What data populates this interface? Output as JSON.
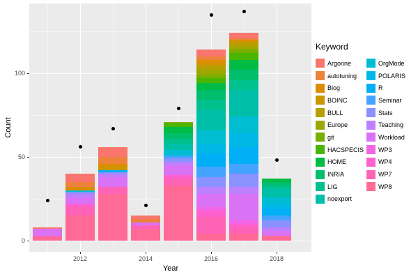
{
  "chart_data": {
    "type": "bar",
    "stacked": true,
    "xlabel": "Year",
    "ylabel": "Count",
    "legend_title": "Keyword",
    "x": [
      2011,
      2012,
      2013,
      2014,
      2015,
      2016,
      2017,
      2018
    ],
    "x_tick_years": [
      2012,
      2014,
      2016,
      2018
    ],
    "x_tick_labels": [
      "2012",
      "2014",
      "2016",
      "2018"
    ],
    "y_tick_values": [
      0,
      50,
      100
    ],
    "y_tick_labels": [
      "0",
      "50",
      "100"
    ],
    "y_minor_values": [
      25,
      75,
      125
    ],
    "ylim": [
      0,
      140
    ],
    "panel_bg": "#EBEBEB",
    "gridline_color": "#FFFFFF",
    "point_color": "#000000",
    "point_series": {
      "name": "totals",
      "values": [
        24,
        56,
        67,
        21,
        79,
        135,
        137,
        48
      ]
    },
    "bar_totals": [
      8,
      40,
      56,
      15,
      71,
      114,
      124,
      37
    ],
    "stack_note": "first series appears at top of each stack",
    "series": [
      {
        "name": "Argonne",
        "color": "#F8766D",
        "values": [
          1,
          5,
          6,
          2,
          0,
          4,
          3,
          0
        ]
      },
      {
        "name": "autotuning",
        "color": "#EC823C",
        "values": [
          0,
          3,
          4,
          2,
          0,
          2,
          1,
          0
        ]
      },
      {
        "name": "Blog",
        "color": "#DD8D00",
        "values": [
          0,
          2,
          2,
          0,
          0,
          2,
          1,
          0
        ]
      },
      {
        "name": "BOINC",
        "color": "#CA9700",
        "values": [
          0,
          0,
          2,
          0,
          0,
          2,
          1,
          0
        ]
      },
      {
        "name": "BULL",
        "color": "#B5A000",
        "values": [
          0,
          0,
          0,
          0,
          0,
          2,
          2,
          0
        ]
      },
      {
        "name": "Europe",
        "color": "#9CA700",
        "values": [
          0,
          0,
          0,
          0,
          0,
          3,
          2,
          0
        ]
      },
      {
        "name": "git",
        "color": "#78AE00",
        "values": [
          0,
          0,
          0,
          0,
          1,
          2,
          2,
          0
        ]
      },
      {
        "name": "HACSPECIS",
        "color": "#49B500",
        "values": [
          0,
          0,
          0,
          0,
          2,
          3,
          4,
          0
        ]
      },
      {
        "name": "HOME",
        "color": "#00BB44",
        "values": [
          0,
          0,
          0,
          0,
          4,
          4,
          6,
          2
        ]
      },
      {
        "name": "INRIA",
        "color": "#00BE6C",
        "values": [
          0,
          0,
          0,
          0,
          3,
          6,
          6,
          2
        ]
      },
      {
        "name": "LIG",
        "color": "#00C08E",
        "values": [
          0,
          0,
          0,
          0,
          3,
          6,
          6,
          2
        ]
      },
      {
        "name": "noexport",
        "color": "#00BFA9",
        "values": [
          0,
          0,
          0,
          0,
          4,
          12,
          16,
          5
        ]
      },
      {
        "name": "OrgMode",
        "color": "#00BDD2",
        "values": [
          0,
          1,
          0,
          0,
          3,
          8,
          10,
          4
        ]
      },
      {
        "name": "POLARIS",
        "color": "#00B8E5",
        "values": [
          0,
          0,
          0,
          0,
          0,
          6,
          8,
          3
        ]
      },
      {
        "name": "R",
        "color": "#00AFF6",
        "values": [
          0,
          0,
          1,
          0,
          0,
          8,
          10,
          4
        ]
      },
      {
        "name": "Seminar",
        "color": "#44A3FF",
        "values": [
          0,
          0,
          0,
          0,
          2,
          6,
          6,
          3
        ]
      },
      {
        "name": "Stats",
        "color": "#8A92FF",
        "values": [
          0,
          1,
          1,
          0,
          2,
          6,
          8,
          4
        ]
      },
      {
        "name": "Teaching",
        "color": "#BD80FF",
        "values": [
          0,
          2,
          2,
          0,
          2,
          4,
          4,
          2
        ]
      },
      {
        "name": "Workload",
        "color": "#DA72F6",
        "values": [
          4,
          4,
          6,
          2,
          6,
          8,
          16,
          3
        ]
      },
      {
        "name": "WP3",
        "color": "#F265E5",
        "values": [
          0,
          0,
          0,
          0,
          0,
          2,
          2,
          0
        ]
      },
      {
        "name": "WP4",
        "color": "#FE61CF",
        "values": [
          0,
          2,
          0,
          0,
          2,
          4,
          2,
          0
        ]
      },
      {
        "name": "WP7",
        "color": "#FF63B6",
        "values": [
          1,
          5,
          4,
          2,
          4,
          10,
          4,
          0
        ]
      },
      {
        "name": "WP8",
        "color": "#FF6B96",
        "values": [
          2,
          15,
          28,
          7,
          33,
          4,
          4,
          3
        ]
      }
    ]
  }
}
